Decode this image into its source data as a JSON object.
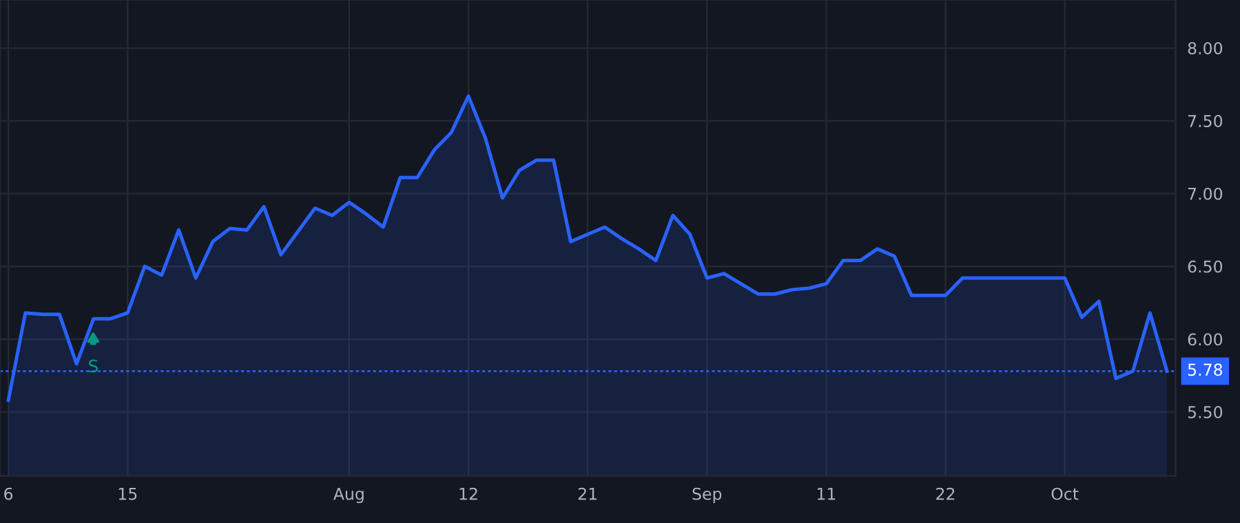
{
  "chart_data": {
    "type": "area",
    "categories": [
      "6",
      null,
      null,
      null,
      null,
      null,
      null,
      "15",
      null,
      null,
      null,
      null,
      null,
      null,
      null,
      null,
      null,
      null,
      null,
      null,
      "Aug",
      null,
      null,
      null,
      null,
      null,
      null,
      "12",
      null,
      null,
      null,
      null,
      null,
      null,
      "21",
      null,
      null,
      null,
      null,
      null,
      null,
      "Sep",
      null,
      null,
      null,
      null,
      null,
      null,
      "11",
      null,
      null,
      null,
      null,
      null,
      null,
      "22",
      null,
      null,
      null,
      null,
      null,
      null,
      "Oct",
      null,
      null,
      null,
      null,
      null,
      null
    ],
    "series": [
      {
        "color": "#2962ff",
        "values": [
          5.58,
          6.18,
          6.17,
          6.17,
          5.83,
          6.14,
          6.14,
          6.18,
          6.5,
          6.44,
          6.75,
          6.42,
          6.67,
          6.76,
          6.75,
          6.91,
          6.58,
          6.74,
          6.9,
          6.85,
          6.94,
          6.86,
          6.77,
          7.11,
          7.11,
          7.3,
          7.42,
          7.67,
          7.38,
          6.97,
          7.16,
          7.23,
          7.23,
          6.67,
          6.72,
          6.77,
          6.69,
          6.62,
          6.54,
          6.85,
          6.72,
          6.42,
          6.45,
          6.38,
          6.31,
          6.31,
          6.34,
          6.35,
          6.38,
          6.54,
          6.54,
          6.62,
          6.57,
          6.3,
          6.3,
          6.3,
          6.42,
          6.42,
          6.42,
          6.42,
          6.42,
          6.42,
          6.42,
          6.15,
          6.26,
          5.73,
          5.78,
          6.18,
          5.78
        ]
      }
    ],
    "ylim": [
      5.06,
      8.33
    ],
    "yticks": [
      {
        "value": 5.5,
        "label": "5.50"
      },
      {
        "value": 6.0,
        "label": "6.00"
      },
      {
        "value": 6.5,
        "label": "6.50"
      },
      {
        "value": 7.0,
        "label": "7.00"
      },
      {
        "value": 7.5,
        "label": "7.50"
      },
      {
        "value": 8.0,
        "label": "8.00"
      }
    ],
    "grid": true,
    "legend": false,
    "ref_lines": [
      {
        "axis": "y",
        "value": 5.78,
        "label": "5.78",
        "color": "#2962ff",
        "line_style": "dotted"
      }
    ],
    "annotations": [
      "S"
    ]
  }
}
